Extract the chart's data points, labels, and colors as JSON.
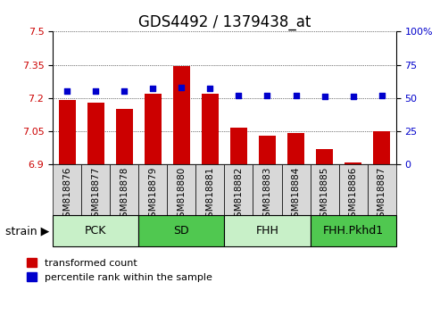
{
  "title": "GDS4492 / 1379438_at",
  "samples": [
    "GSM818876",
    "GSM818877",
    "GSM818878",
    "GSM818879",
    "GSM818880",
    "GSM818881",
    "GSM818882",
    "GSM818883",
    "GSM818884",
    "GSM818885",
    "GSM818886",
    "GSM818887"
  ],
  "bar_values": [
    7.19,
    7.18,
    7.15,
    7.22,
    7.345,
    7.22,
    7.065,
    7.03,
    7.04,
    6.97,
    6.91,
    7.05
  ],
  "percentile_values": [
    55,
    55,
    55,
    57,
    58,
    57,
    52,
    52,
    52,
    51,
    51,
    52
  ],
  "bar_color": "#cc0000",
  "dot_color": "#0000cc",
  "ylim_left": [
    6.9,
    7.5
  ],
  "ylim_right": [
    0,
    100
  ],
  "yticks_left": [
    6.9,
    7.05,
    7.2,
    7.35,
    7.5
  ],
  "yticks_right": [
    0,
    25,
    50,
    75,
    100
  ],
  "ytick_labels_left": [
    "6.9",
    "7.05",
    "7.2",
    "7.35",
    "7.5"
  ],
  "ytick_labels_right": [
    "0",
    "25",
    "50",
    "75",
    "100%"
  ],
  "groups": [
    {
      "label": "PCK",
      "start": 0,
      "end": 3,
      "color": "#c8f0c8"
    },
    {
      "label": "SD",
      "start": 3,
      "end": 6,
      "color": "#50c850"
    },
    {
      "label": "FHH",
      "start": 6,
      "end": 9,
      "color": "#c8f0c8"
    },
    {
      "label": "FHH.Pkhd1",
      "start": 9,
      "end": 12,
      "color": "#50c850"
    }
  ],
  "xlabel_strain": "strain",
  "legend_bar": "transformed count",
  "legend_dot": "percentile rank within the sample",
  "background_plot": "#ffffff",
  "background_xtick": "#d8d8d8",
  "title_fontsize": 12,
  "tick_fontsize": 8,
  "label_fontsize": 9
}
